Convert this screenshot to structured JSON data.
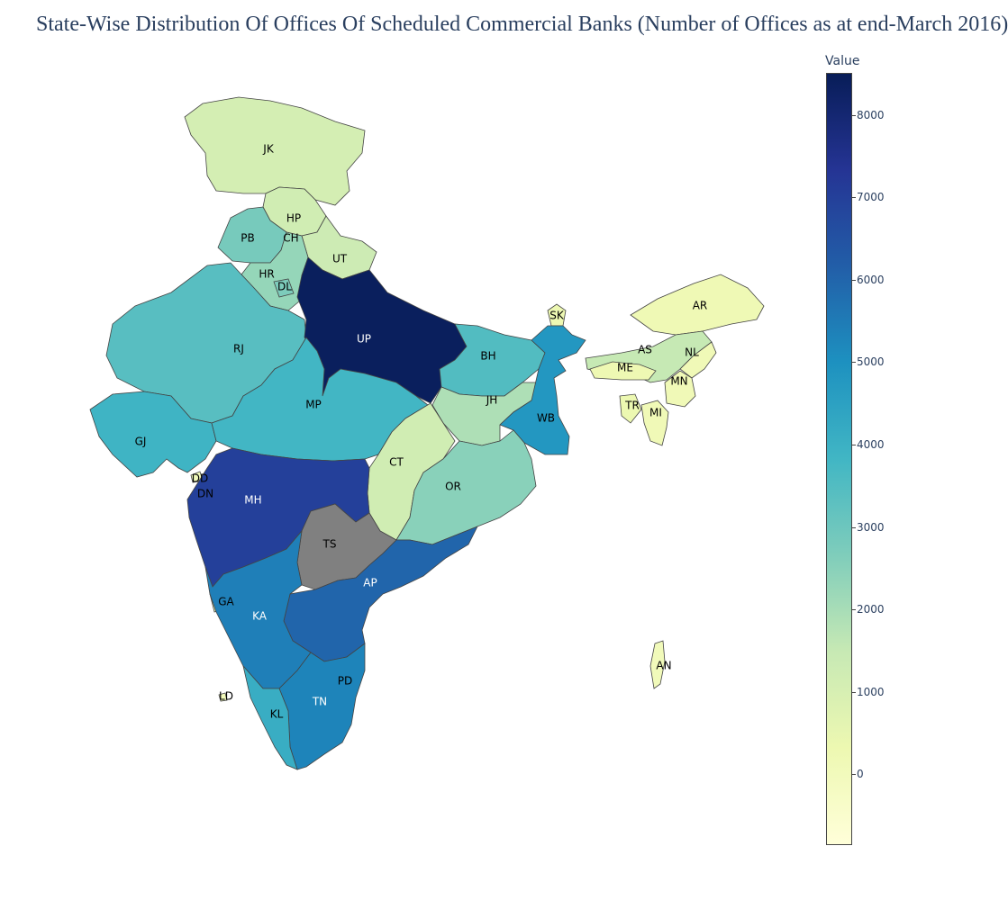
{
  "title": "State-Wise Distribution Of Offices Of Scheduled Commercial Banks (Number of Offices as at end-March 2016)",
  "colorbar": {
    "title": "Value",
    "ticks": [
      "8000",
      "7000",
      "6000",
      "5000",
      "4000",
      "3000",
      "2000",
      "1000",
      "0"
    ],
    "tick_values": [
      8000,
      7000,
      6000,
      5000,
      4000,
      3000,
      2000,
      1000,
      0
    ],
    "range": [
      -850,
      8500
    ],
    "colorscale": "YlGnBu",
    "colors": [
      "#ffffd9",
      "#edf8b1",
      "#c7e9b4",
      "#7fcdbb",
      "#41b6c4",
      "#1d91c0",
      "#225ea8",
      "#253494",
      "#081d58"
    ]
  },
  "missing_color": "#808080",
  "map_data": {
    "type": "choropleth",
    "states": [
      {
        "code": "JK",
        "value": 1100
      },
      {
        "code": "HP",
        "value": 1200
      },
      {
        "code": "PB",
        "value": 2800
      },
      {
        "code": "CH",
        "value": 500
      },
      {
        "code": "UT",
        "value": 1300
      },
      {
        "code": "HR",
        "value": 2300
      },
      {
        "code": "DL",
        "value": 2700
      },
      {
        "code": "RJ",
        "value": 3400
      },
      {
        "code": "UP",
        "value": 8400
      },
      {
        "code": "BH",
        "value": 3500
      },
      {
        "code": "SK",
        "value": 300
      },
      {
        "code": "AR",
        "value": 200
      },
      {
        "code": "AS",
        "value": 1500
      },
      {
        "code": "NL",
        "value": 150
      },
      {
        "code": "ME",
        "value": 250
      },
      {
        "code": "MN",
        "value": 150
      },
      {
        "code": "TR",
        "value": 350
      },
      {
        "code": "MI",
        "value": 150
      },
      {
        "code": "JH",
        "value": 1900
      },
      {
        "code": "WB",
        "value": 4800
      },
      {
        "code": "GJ",
        "value": 3900
      },
      {
        "code": "MP",
        "value": 3800
      },
      {
        "code": "CT",
        "value": 1200
      },
      {
        "code": "OR",
        "value": 2500
      },
      {
        "code": "DD",
        "value": 30
      },
      {
        "code": "DN",
        "value": 40
      },
      {
        "code": "MH",
        "value": 7000
      },
      {
        "code": "TS",
        "value": null
      },
      {
        "code": "AP",
        "value": 6000
      },
      {
        "code": "GA",
        "value": 700
      },
      {
        "code": "KA",
        "value": 5400
      },
      {
        "code": "PD",
        "value": 200
      },
      {
        "code": "TN",
        "value": 5300
      },
      {
        "code": "KL",
        "value": 4100
      },
      {
        "code": "LD",
        "value": 13
      },
      {
        "code": "AN",
        "value": 50
      }
    ]
  }
}
